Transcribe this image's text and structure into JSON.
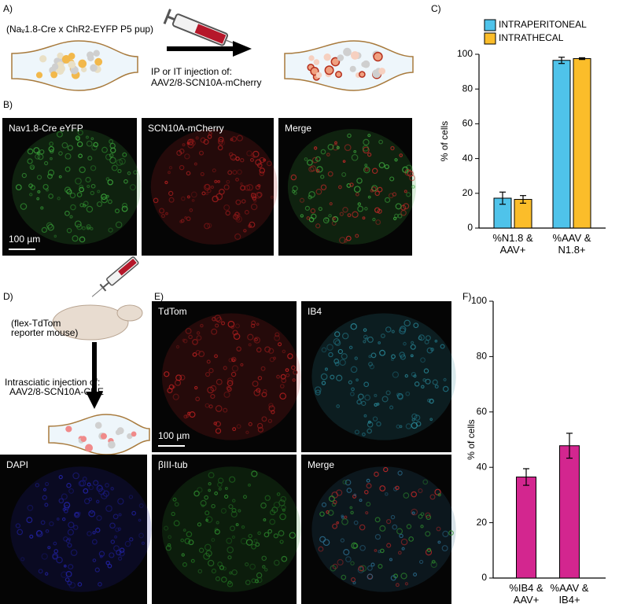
{
  "figure": {
    "a": {
      "label": "A)",
      "genotype": "(Naᵥ1.8-Cre x ChR2-EYFP P5 pup)",
      "injection": "IP or IT  injection of:",
      "vector": "AAV2/8-SCN10A-mCherry"
    },
    "b": {
      "label": "B)",
      "panels": [
        "Nav1.8-Cre eYFP",
        "SCN10A-mCherry",
        "Merge"
      ],
      "scale_bar": "100 µm"
    },
    "d": {
      "label": "D)",
      "reporter": [
        "(flex-TdTom",
        "reporter mouse)"
      ],
      "injection": "Intrasciatic  injection of:",
      "vector": "AAV2/8-SCN10A-CRE"
    },
    "e": {
      "label": "E)",
      "panels": [
        "TdTom",
        "IB4",
        "DAPI",
        "βIII-tub",
        "Merge"
      ],
      "scale_bar": "100 µm"
    }
  },
  "chart_data": [
    {
      "type": "bar",
      "label": "C)",
      "ylabel": "% of cells",
      "categories": [
        "%N1.8 & AAV+",
        "%AAV & N1.8+"
      ],
      "series": [
        {
          "name": "INTRAPERITONEAL",
          "color": "#4fc3ea",
          "values": [
            17.2,
            96.5
          ],
          "errors": [
            3.5,
            1.8
          ]
        },
        {
          "name": "INTRATHECAL",
          "color": "#fbbd2a",
          "values": [
            16.5,
            97.5
          ],
          "errors": [
            2.2,
            0.5
          ]
        }
      ],
      "ylim": [
        0,
        100
      ],
      "yticks": [
        0,
        20,
        40,
        60,
        80,
        100
      ],
      "legend": "top"
    },
    {
      "type": "bar",
      "label": "F)",
      "ylabel": "% of cells",
      "categories": [
        "%IB4 & AAV+",
        "%AAV & IB4+"
      ],
      "values": [
        36.5,
        47.8
      ],
      "errors": [
        3.0,
        4.5
      ],
      "color": "#d3268f",
      "ylim": [
        0,
        100
      ],
      "yticks": [
        0,
        20,
        40,
        60,
        80,
        100
      ]
    }
  ]
}
